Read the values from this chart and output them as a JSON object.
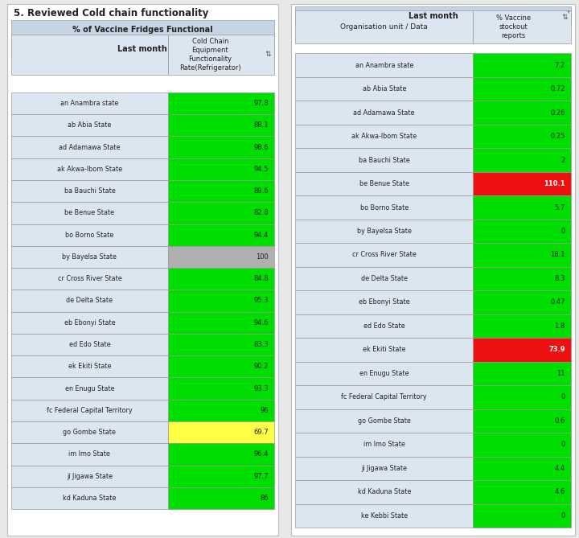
{
  "left_title": "5. Reviewed Cold chain functionality",
  "left_header1": "% of Vaccine Fridges Functional",
  "left_header2": "Last month",
  "left_col_header": "Cold Chain\nEquipment\nFunctionality\nRate(Refrigerator)",
  "left_states": [
    "an Anambra state",
    "ab Abia State",
    "ad Adamawa State",
    "ak Akwa-Ibom State",
    "ba Bauchi State",
    "be Benue State",
    "bo Borno State",
    "by Bayelsa State",
    "cr Cross River State",
    "de Delta State",
    "eb Ebonyi State",
    "ed Edo State",
    "ek Ekiti State",
    "en Enugu State",
    "fc Federal Capital Territory",
    "go Gombe State",
    "im Imo State",
    "ji Jigawa State",
    "kd Kaduna State"
  ],
  "left_values": [
    97.8,
    88.1,
    98.6,
    94.5,
    89.6,
    82.8,
    94.4,
    100,
    84.8,
    95.3,
    94.6,
    83.3,
    90.2,
    93.3,
    96,
    69.7,
    96.4,
    97.7,
    86
  ],
  "left_colors": [
    "#00dd00",
    "#00dd00",
    "#00dd00",
    "#00dd00",
    "#00dd00",
    "#00dd00",
    "#00dd00",
    "#b0b0b0",
    "#00dd00",
    "#00dd00",
    "#00dd00",
    "#00dd00",
    "#00dd00",
    "#00dd00",
    "#00dd00",
    "#ffff44",
    "#00dd00",
    "#00dd00",
    "#00dd00"
  ],
  "right_header": "Last month",
  "right_col1": "Organisation unit / Data",
  "right_col2": "% Vaccine\nstockout\nreports",
  "right_states": [
    "an Anambra state",
    "ab Abia State",
    "ad Adamawa State",
    "ak Akwa-Ibom State",
    "ba Bauchi State",
    "be Benue State",
    "bo Borno State",
    "by Bayelsa State",
    "cr Cross River State",
    "de Delta State",
    "eb Ebonyi State",
    "ed Edo State",
    "ek Ekiti State",
    "en Enugu State",
    "fc Federal Capital Territory",
    "go Gombe State",
    "im Imo State",
    "ji Jigawa State",
    "kd Kaduna State",
    "ke Kebbi State"
  ],
  "right_values": [
    "7.2",
    "0.72",
    "0.26",
    "0.25",
    "2",
    "110.1",
    "5.7",
    "0",
    "18.1",
    "8.3",
    "0.47",
    "1.8",
    "73.9",
    "11",
    "0",
    "0.6",
    "0",
    "4.4",
    "4.6",
    "0"
  ],
  "right_colors": [
    "#00dd00",
    "#00dd00",
    "#00dd00",
    "#00dd00",
    "#00dd00",
    "#ee1111",
    "#00dd00",
    "#00dd00",
    "#00dd00",
    "#00dd00",
    "#00dd00",
    "#00dd00",
    "#ee1111",
    "#00dd00",
    "#00dd00",
    "#00dd00",
    "#00dd00",
    "#00dd00",
    "#00dd00",
    "#00dd00"
  ],
  "right_text_colors": [
    "#222222",
    "#222222",
    "#222222",
    "#222222",
    "#222222",
    "#ffffff",
    "#222222",
    "#222222",
    "#222222",
    "#222222",
    "#222222",
    "#222222",
    "#ffffff",
    "#222222",
    "#222222",
    "#222222",
    "#222222",
    "#222222",
    "#222222",
    "#222222"
  ],
  "outer_bg": "#e8e8e8",
  "panel_bg": "#ffffff",
  "header_bg": "#c5d5e5",
  "row_bg": "#dce6f0",
  "border_color": "#999999",
  "sort_icon": "⇅"
}
